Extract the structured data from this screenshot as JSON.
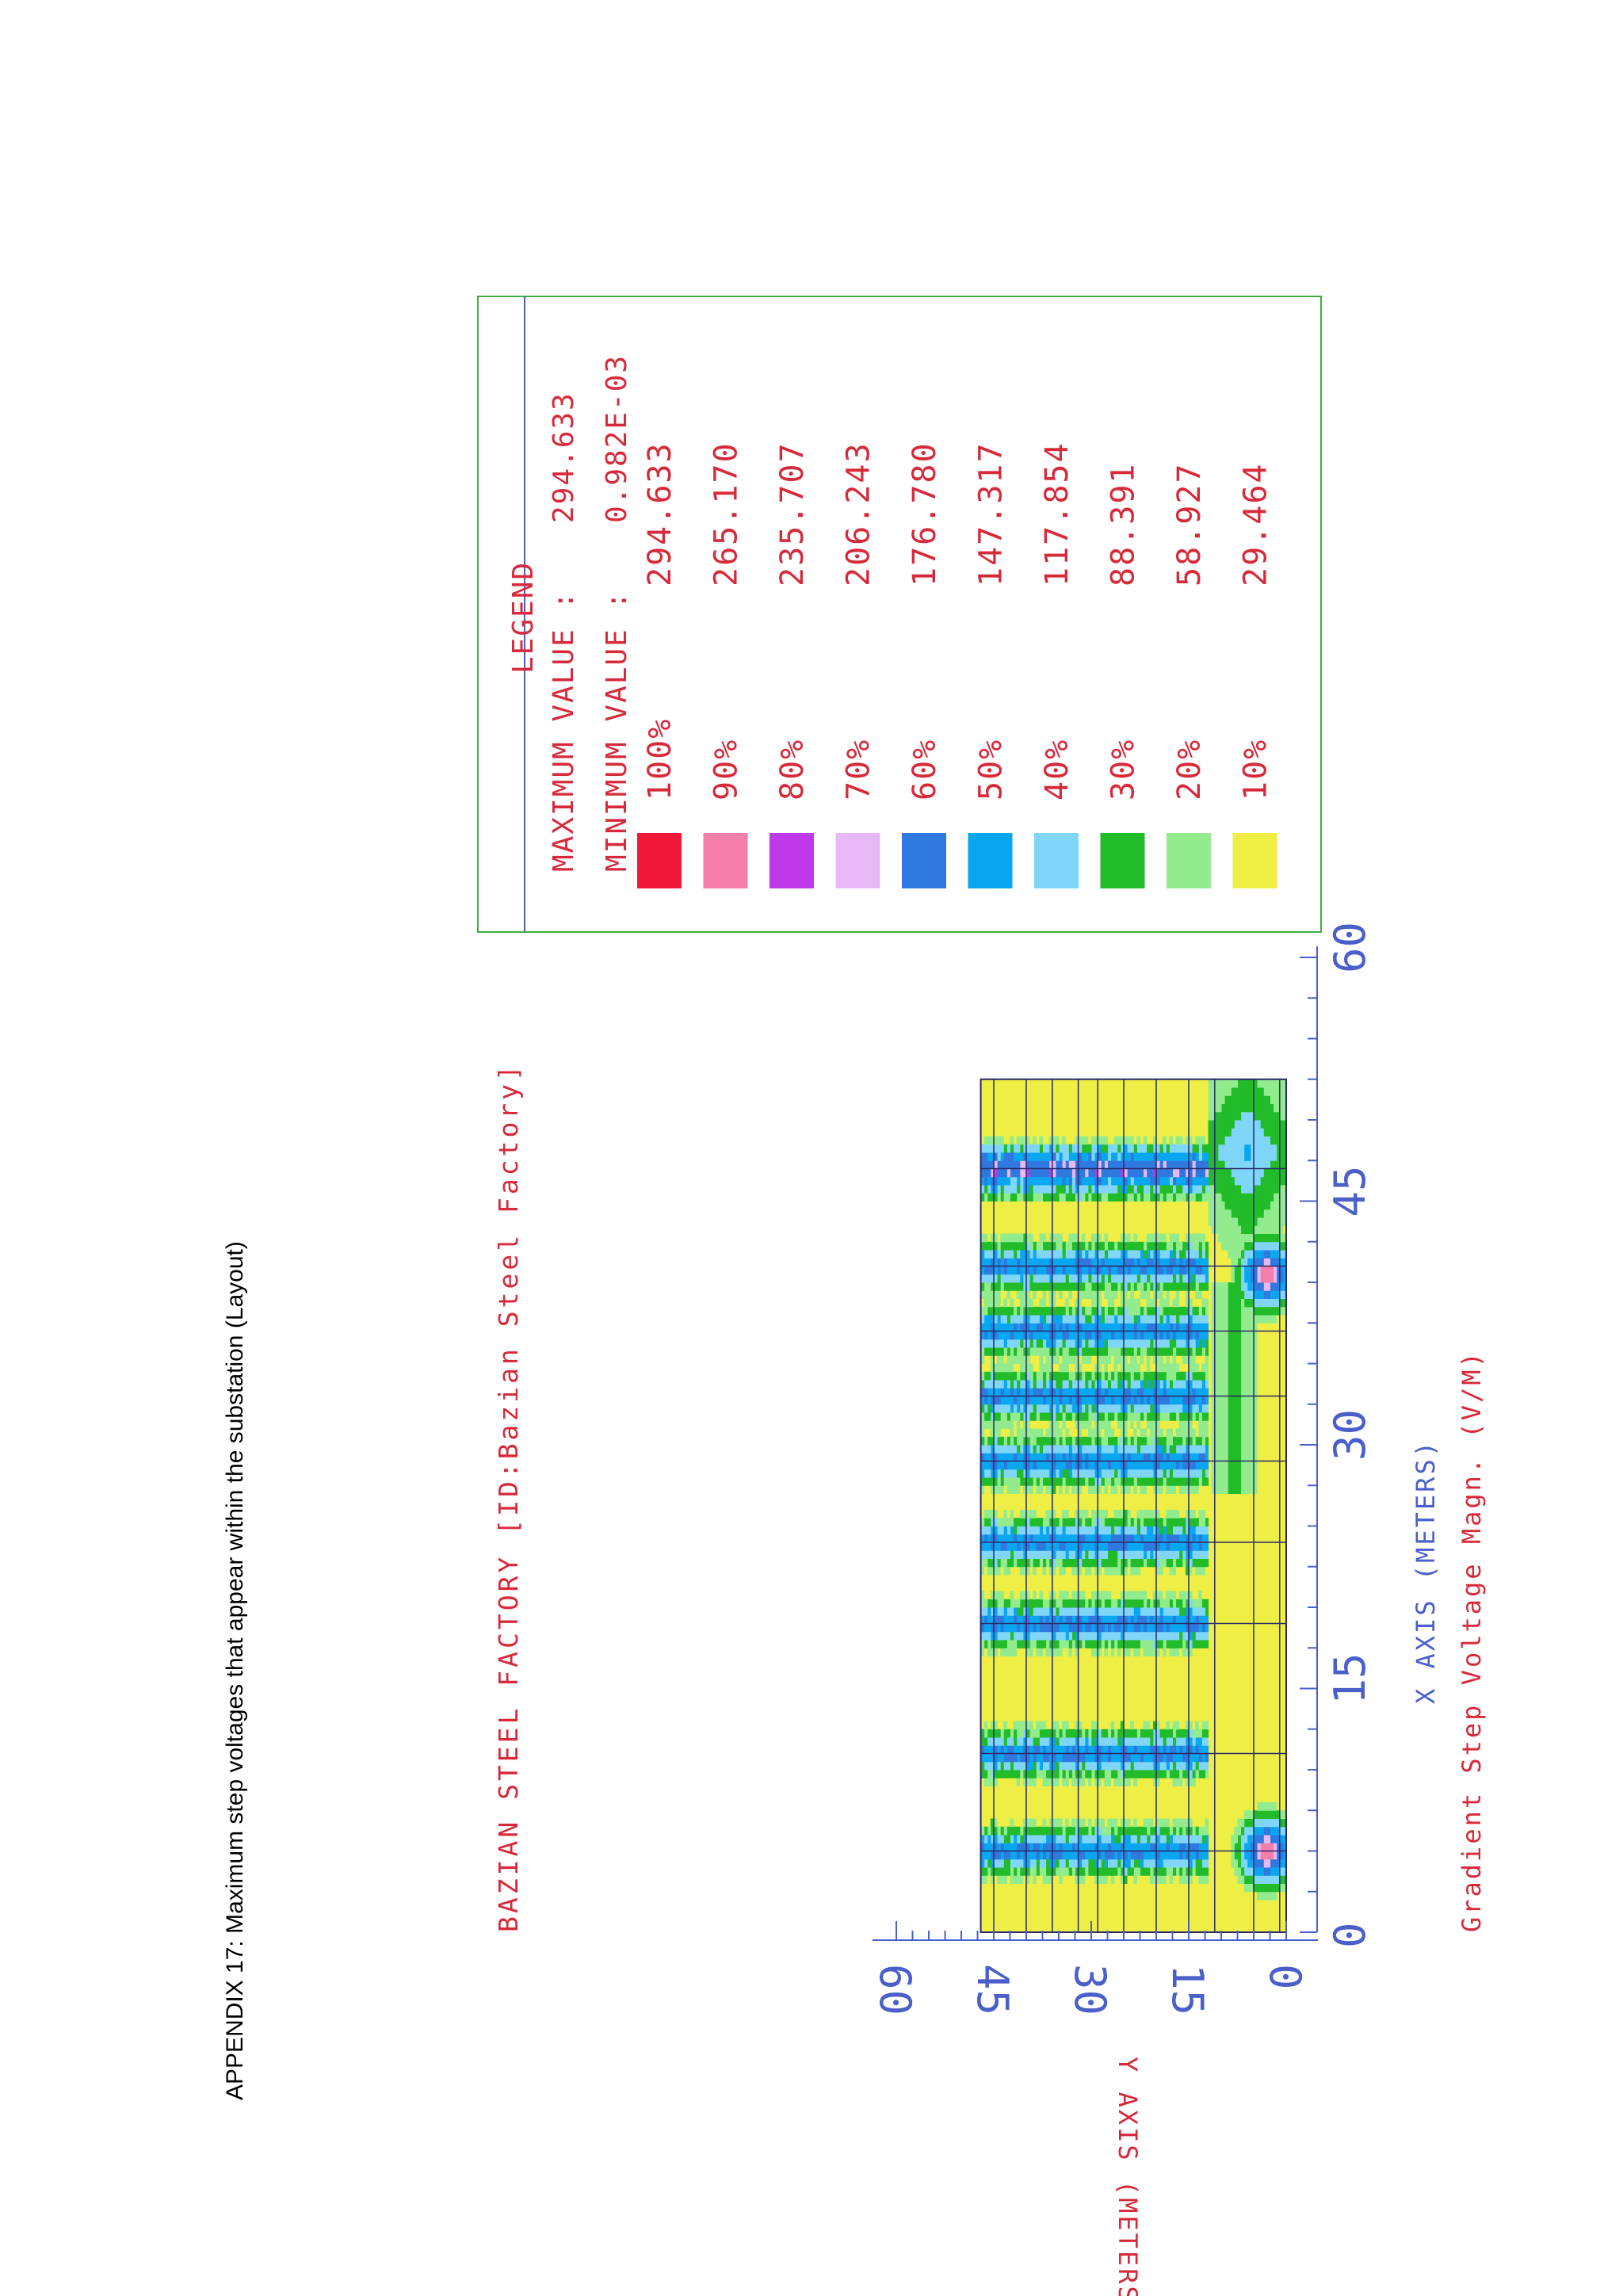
{
  "caption": "APPENDIX 17: Maximum step voltages that appear within the substation (Layout)",
  "chart_data": {
    "type": "heatmap",
    "title": "BAZIAN STEEL FACTORY [ID:Bazian Steel Factory]",
    "xlabel": "X AXIS  (METERS)",
    "ylabel": "Y AXIS  (METERS)",
    "quantity_label": "Gradient Step Voltage Magn.  (V/M)",
    "x_ticks": [
      "0",
      "15",
      "30",
      "45",
      "60"
    ],
    "y_ticks": [
      "0",
      "15",
      "30",
      "45",
      "60"
    ],
    "xlim": [
      0,
      60
    ],
    "ylim": [
      0,
      60
    ],
    "grid_extent": {
      "x": [
        0,
        52.5
      ],
      "y": [
        0,
        47
      ]
    },
    "conductors_x": [
      5,
      11,
      19,
      24,
      29,
      33,
      37,
      41,
      47
    ],
    "conductors_y": [
      1,
      5,
      11,
      15,
      20,
      25,
      29,
      32,
      36,
      40,
      45
    ],
    "legend": {
      "title": "LEGEND",
      "maximum_label": "MAXIMUM VALUE :",
      "maximum_value": "294.633",
      "minimum_label": "MINIMUM VALUE :",
      "minimum_value": "0.982E-03",
      "levels": [
        {
          "percent": "100%",
          "value": "294.633",
          "color": "#f2183a"
        },
        {
          "percent": "90%",
          "value": "265.170",
          "color": "#f57fa8"
        },
        {
          "percent": "80%",
          "value": "235.707",
          "color": "#be38e8"
        },
        {
          "percent": "70%",
          "value": "206.243",
          "color": "#e7b8f5"
        },
        {
          "percent": "60%",
          "value": "176.780",
          "color": "#2e78de"
        },
        {
          "percent": "50%",
          "value": "147.317",
          "color": "#0aa6f0"
        },
        {
          "percent": "40%",
          "value": "117.854",
          "color": "#7fd6f8"
        },
        {
          "percent": "30%",
          "value": "88.391",
          "color": "#22bb2a"
        },
        {
          "percent": "20%",
          "value": "58.927",
          "color": "#92ec8e"
        },
        {
          "percent": "10%",
          "value": "29.464",
          "color": "#eeee44"
        }
      ]
    },
    "colors": {
      "axis": "#4a5fc9",
      "title": "#d62a3a",
      "legend_border": "#3fae3f",
      "conductor": "#2a2a6a",
      "background_field": "#eeee44"
    }
  }
}
